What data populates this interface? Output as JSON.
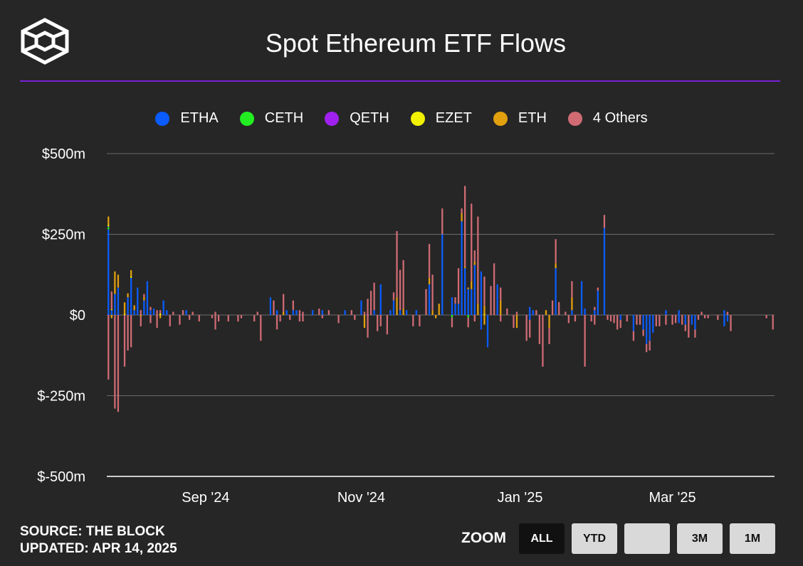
{
  "title": "Spot Ethereum ETF Flows",
  "source_line": "SOURCE: THE BLOCK",
  "updated_line": "UPDATED: APR 14, 2025",
  "zoom": {
    "label": "ZOOM",
    "buttons": [
      "ALL",
      "YTD",
      "",
      "3M",
      "1M"
    ],
    "active": "ALL"
  },
  "colors": {
    "background": "#262626",
    "accent": "#7b1fd6",
    "grid": "#6b6b6b"
  },
  "chart_data": {
    "type": "bar",
    "stacked": true,
    "title": "Spot Ethereum ETF Flows",
    "ylim": [
      -500,
      500
    ],
    "yticks": [
      {
        "value": 500,
        "label": "$500m"
      },
      {
        "value": 250,
        "label": "$250m"
      },
      {
        "value": 0,
        "label": "$0"
      },
      {
        "value": -250,
        "label": "$-250m"
      },
      {
        "value": -500,
        "label": "$-500m"
      }
    ],
    "xticks": [
      {
        "index": 30,
        "label": "Sep '24"
      },
      {
        "index": 78,
        "label": "Nov '24"
      },
      {
        "index": 127,
        "label": "Jan '25"
      },
      {
        "index": 174,
        "label": "Mar '25"
      }
    ],
    "n_days": 206,
    "legend_position": "top-center",
    "grid": true,
    "series": [
      {
        "name": "ETHA",
        "color": "#0a5cff",
        "values": {
          "0": 265,
          "1": 15,
          "2": 65,
          "3": 85,
          "6": 55,
          "7": 115,
          "8": 15,
          "9": 85,
          "11": 45,
          "12": 105,
          "13": 15,
          "14": 20,
          "17": 45,
          "18": 15,
          "24": 15,
          "50": 55,
          "52": 15,
          "55": 15,
          "57": 15,
          "58": 15,
          "63": 15,
          "66": 15,
          "73": 15,
          "78": 45,
          "82": 15,
          "84": 95,
          "87": 15,
          "88": 45,
          "90": 15,
          "92": 15,
          "95": 15,
          "99": 95,
          "103": 250,
          "106": 55,
          "107": 35,
          "108": 35,
          "109": 290,
          "110": 145,
          "111": 80,
          "112": 80,
          "113": 155,
          "115": 135,
          "120": 95,
          "130": 25,
          "131": 15,
          "138": 145,
          "143": 15,
          "146": 105,
          "147": 20,
          "150": 15,
          "151": 75,
          "153": 270,
          "172": 15,
          "176": 15,
          "190": 15
        },
        "neg": {
          "115": -45,
          "117": -100,
          "130": -15,
          "158": -15,
          "162": -50,
          "165": -45,
          "166": -90,
          "167": -80,
          "168": -55,
          "176": -25,
          "178": -30,
          "180": -30,
          "181": -45,
          "190": -35,
          "191": -20
        }
      },
      {
        "name": "CETH",
        "color": "#22ee22",
        "values": {
          "0": 8
        },
        "neg": {
          "106": -8,
          "111": -8
        }
      },
      {
        "name": "QETH",
        "color": "#a020f0",
        "values": {
          "0": 2
        },
        "neg": {}
      },
      {
        "name": "EZET",
        "color": "#f2f200",
        "values": {
          "0": 5,
          "1": 3,
          "5": 4,
          "7": 4,
          "16": 5,
          "116": 4
        },
        "neg": {}
      },
      {
        "name": "ETH",
        "color": "#e2a00e",
        "values": {
          "0": 25,
          "2": 70,
          "3": 40,
          "5": 35,
          "6": 12,
          "7": 20,
          "8": 15,
          "11": 10,
          "54": 10,
          "89": 55,
          "91": 20,
          "99": 20,
          "100": 15,
          "102": 35,
          "109": 25,
          "110": 5,
          "111": 5,
          "112": 25,
          "113": 10,
          "114": 35,
          "116": 25,
          "121": 45,
          "135": 15,
          "138": 15,
          "143": 40
        },
        "neg": {
          "1": -10,
          "10": -5,
          "16": -10,
          "79": -40,
          "101": -10,
          "116": -30,
          "126": -40,
          "136": -40
        }
      },
      {
        "name": "4 Others",
        "color": "#d06b74",
        "values": {
          "1": 55,
          "10": 15,
          "11": 10,
          "13": 10,
          "15": 15,
          "16": 10,
          "20": 10,
          "23": 15,
          "26": 10,
          "33": 10,
          "46": 10,
          "51": 45,
          "54": 55,
          "57": 30,
          "59": 15,
          "60": 10,
          "65": 20,
          "68": 15,
          "75": 15,
          "79": 10,
          "80": 50,
          "81": 75,
          "82": 85,
          "88": 25,
          "89": 205,
          "90": 125,
          "91": 150,
          "98": 80,
          "99": 105,
          "100": 110,
          "103": 80,
          "107": 20,
          "108": 110,
          "109": 15,
          "110": 250,
          "112": 240,
          "113": 35,
          "114": 270,
          "116": 90,
          "118": 90,
          "119": 160,
          "121": 40,
          "123": 20,
          "126": 10,
          "132": 15,
          "137": 45,
          "138": 75,
          "139": 40,
          "141": 10,
          "143": 50,
          "150": 10,
          "151": 10,
          "153": 40,
          "183": 10,
          "191": 10
        },
        "neg": {
          "0": -200,
          "2": -290,
          "3": -300,
          "5": -160,
          "6": -110,
          "7": -100,
          "10": -30,
          "13": -25,
          "15": -40,
          "19": -35,
          "22": -30,
          "25": -15,
          "28": -20,
          "32": -10,
          "33": -45,
          "34": -20,
          "37": -20,
          "40": -20,
          "41": -10,
          "45": -20,
          "47": -80,
          "52": -45,
          "53": -20,
          "56": -15,
          "59": -20,
          "60": -20,
          "66": -10,
          "71": -25,
          "76": -15,
          "80": -70,
          "83": -50,
          "84": -35,
          "86": -60,
          "94": -35,
          "96": -35,
          "106": -30,
          "111": -30,
          "113": -20,
          "121": -20,
          "125": -40,
          "129": -80,
          "130": -55,
          "133": -90,
          "134": -160,
          "136": -50,
          "142": -25,
          "144": -20,
          "147": -160,
          "149": -20,
          "150": -30,
          "154": -15,
          "155": -20,
          "156": -25,
          "157": -45,
          "158": -25,
          "160": -20,
          "162": -30,
          "163": -30,
          "164": -30,
          "165": -20,
          "166": -25,
          "167": -30,
          "169": -35,
          "170": -35,
          "172": -30,
          "174": -30,
          "175": -25,
          "177": -30,
          "178": -20,
          "179": -70,
          "181": -25,
          "182": -15,
          "184": -10,
          "185": -10,
          "188": -15,
          "192": -50,
          "203": -10,
          "205": -45
        }
      }
    ]
  }
}
